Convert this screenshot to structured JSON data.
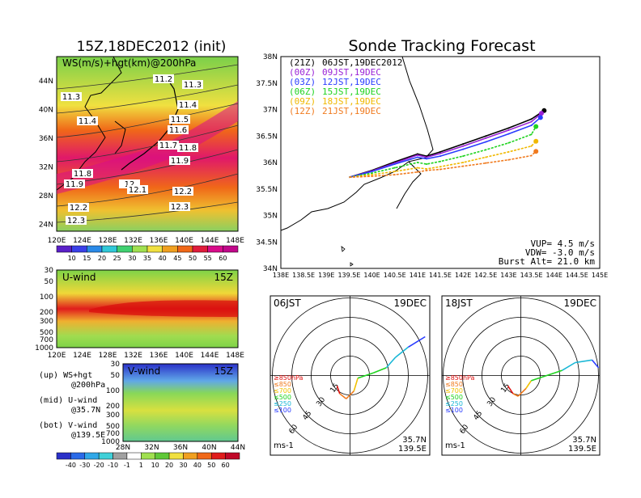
{
  "left_title": "15Z,18DEC2012 (init)",
  "right_title": "Sonde Tracking Forecast",
  "map_panel": {
    "label": "WS(m/s)+hgt(km)@200hPa",
    "lat_ticks": [
      "44N",
      "40N",
      "36N",
      "32N",
      "28N",
      "24N"
    ],
    "lon_ticks": [
      "120E",
      "124E",
      "128E",
      "132E",
      "136E",
      "140E",
      "144E",
      "148E"
    ],
    "contour_labels": [
      "11.2",
      "11.3",
      "11.3",
      "11.4",
      "11.4",
      "11.5",
      "11.6",
      "11.7",
      "11.8",
      "11.9",
      "11.8",
      "11.9",
      "12",
      "12.1",
      "12.2",
      "12.2",
      "12.3",
      "12.3"
    ],
    "colorbar_ticks": [
      "10",
      "15",
      "20",
      "25",
      "30",
      "35",
      "40",
      "45",
      "50",
      "55",
      "60"
    ]
  },
  "uwind_panel": {
    "label": "U-wind",
    "time": "15Z",
    "pressure_ticks": [
      "30",
      "50",
      "100",
      "200",
      "300",
      "500",
      "700",
      "1000"
    ],
    "lon_ticks": [
      "120E",
      "124E",
      "128E",
      "132E",
      "136E",
      "140E",
      "144E",
      "148E"
    ]
  },
  "vwind_panel": {
    "label": "V-wind",
    "time": "15Z",
    "pressure_ticks": [
      "30",
      "50",
      "100",
      "200",
      "300",
      "500",
      "700",
      "1000"
    ],
    "lat_ticks": [
      "28N",
      "32N",
      "36N",
      "40N",
      "44N"
    ]
  },
  "legend_notes": [
    {
      "tag": "(up)",
      "text": "WS+hgt",
      "sub": "@200hPa"
    },
    {
      "tag": "(mid)",
      "text": "U-wind",
      "sub": "@35.7N"
    },
    {
      "tag": "(bot)",
      "text": "V-wind",
      "sub": "@139.5E"
    }
  ],
  "bottom_colorbar_ticks": [
    "-40",
    "-30",
    "-20",
    "-10",
    "-1",
    "1",
    "10",
    "20",
    "30",
    "40",
    "50",
    "60"
  ],
  "track_panel": {
    "launches": [
      {
        "utc": "(21Z)",
        "jst": "06JST,19DEC2012",
        "color": "#000000"
      },
      {
        "utc": "(00Z)",
        "jst": "09JST,19DEC",
        "color": "#9a22d6"
      },
      {
        "utc": "(03Z)",
        "jst": "12JST,19DEC",
        "color": "#2a3cff"
      },
      {
        "utc": "(06Z)",
        "jst": "15JST,19DEC",
        "color": "#1fd31f"
      },
      {
        "utc": "(09Z)",
        "jst": "18JST,19DEC",
        "color": "#f0b800"
      },
      {
        "utc": "(12Z)",
        "jst": "21JST,19DEC",
        "color": "#f07a1e"
      }
    ],
    "lat_ticks": [
      "38N",
      "37.5N",
      "37N",
      "36.5N",
      "36N",
      "35.5N",
      "35N",
      "34.5N",
      "34N"
    ],
    "lon_ticks": [
      "138E",
      "138.5E",
      "139E",
      "139.5E",
      "140E",
      "140.5E",
      "141E",
      "141.5E",
      "142E",
      "142.5E",
      "143E",
      "143.5E",
      "144E",
      "144.5E",
      "145E"
    ],
    "vup": "VUP= 4.5 m/s",
    "vdw": "VDW= -3.0 m/s",
    "burst": "Burst Alt= 21.0 km"
  },
  "hodographs": [
    {
      "time": "06JST",
      "date": "19DEC",
      "unit": "ms-1",
      "lat": "35.7N",
      "lon": "139.5E",
      "ring_labels": [
        "15",
        "30",
        "45",
        "60"
      ]
    },
    {
      "time": "18JST",
      "date": "19DEC",
      "unit": "ms-1",
      "lat": "35.7N",
      "lon": "139.5E",
      "ring_labels": [
        "15",
        "30",
        "45",
        "60"
      ]
    }
  ],
  "hodo_levels": [
    {
      "label": "≥850hPa",
      "color": "#e01010"
    },
    {
      "label": "≤850",
      "color": "#f07a1e"
    },
    {
      "label": "≤700",
      "color": "#f0c000"
    },
    {
      "label": "≤500",
      "color": "#1fd31f"
    },
    {
      "label": "≤250",
      "color": "#19b7d6"
    },
    {
      "label": "≤100",
      "color": "#2a3cff"
    }
  ],
  "chart_data": {
    "type": "line",
    "title": "Sonde Tracking Forecast",
    "xlim": [
      138,
      145
    ],
    "ylim": [
      34,
      38
    ],
    "series": [
      {
        "name": "(21Z) 06JST,19DEC2012",
        "color": "#000000",
        "x": [
          139.5,
          140.0,
          140.5,
          141.0,
          141.2,
          141.5,
          142.0,
          142.5,
          143.0,
          143.5,
          143.78
        ],
        "y": [
          35.72,
          35.85,
          36.01,
          36.16,
          36.12,
          36.2,
          36.35,
          36.5,
          36.65,
          36.82,
          36.98
        ]
      },
      {
        "name": "(00Z) 09JST,19DEC",
        "color": "#9a22d6",
        "x": [
          139.5,
          140.0,
          140.5,
          141.0,
          141.2,
          141.5,
          142.0,
          142.5,
          143.0,
          143.5,
          143.72
        ],
        "y": [
          35.72,
          35.84,
          35.99,
          36.14,
          36.1,
          36.17,
          36.31,
          36.46,
          36.61,
          36.77,
          36.93
        ]
      },
      {
        "name": "(03Z) 12JST,19DEC",
        "color": "#2a3cff",
        "x": [
          139.5,
          140.0,
          140.5,
          141.0,
          141.2,
          141.5,
          142.0,
          142.5,
          143.0,
          143.5,
          143.7
        ],
        "y": [
          35.72,
          35.83,
          35.97,
          36.1,
          36.07,
          36.12,
          36.25,
          36.39,
          36.54,
          36.7,
          36.85
        ]
      },
      {
        "name": "(06Z) 15JST,19DEC",
        "color": "#1fd31f",
        "x": [
          139.5,
          140.0,
          140.5,
          141.0,
          141.2,
          141.5,
          142.0,
          142.5,
          143.0,
          143.5,
          143.6
        ],
        "y": [
          35.72,
          35.8,
          35.9,
          36.0,
          35.97,
          36.02,
          36.12,
          36.24,
          36.37,
          36.53,
          36.68
        ]
      },
      {
        "name": "(09Z) 18JST,19DEC",
        "color": "#f0b800",
        "x": [
          139.5,
          140.0,
          140.5,
          141.0,
          141.2,
          141.5,
          142.0,
          142.5,
          143.0,
          143.5,
          143.6
        ],
        "y": [
          35.72,
          35.77,
          35.83,
          35.9,
          35.88,
          35.92,
          36.0,
          36.1,
          36.2,
          36.31,
          36.4
        ]
      },
      {
        "name": "(12Z) 21JST,19DEC",
        "color": "#f07a1e",
        "x": [
          139.5,
          140.0,
          140.5,
          141.0,
          141.2,
          141.5,
          142.0,
          142.5,
          143.0,
          143.5,
          143.6
        ],
        "y": [
          35.72,
          35.74,
          35.77,
          35.82,
          35.85,
          35.87,
          35.93,
          35.99,
          36.05,
          36.13,
          36.21
        ]
      }
    ]
  }
}
